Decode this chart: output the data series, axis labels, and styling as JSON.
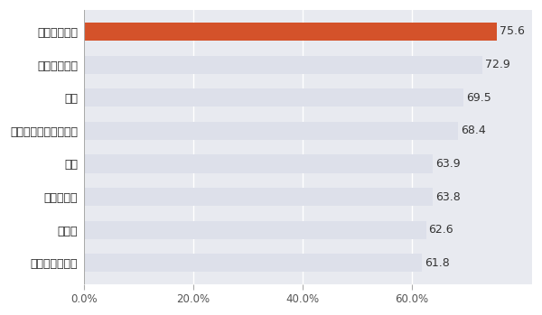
{
  "categories": [
    "人材派遣・紹介",
    "飲食店",
    "運輸・倉庫",
    "金融",
    "メンテナンス・警備等",
    "建設",
    "情報サービス",
    "旅館・ホテル"
  ],
  "values": [
    61.8,
    62.6,
    63.8,
    63.9,
    68.4,
    69.5,
    72.9,
    75.6
  ],
  "bar_colors": [
    "#dde0ea",
    "#dde0ea",
    "#dde0ea",
    "#dde0ea",
    "#dde0ea",
    "#dde0ea",
    "#dde0ea",
    "#d4522a"
  ],
  "value_labels": [
    "61.8",
    "62.6",
    "63.8",
    "63.9",
    "68.4",
    "69.5",
    "72.9",
    "75.6"
  ],
  "xlim": [
    0,
    82
  ],
  "xticks": [
    0,
    20,
    40,
    60
  ],
  "xtick_labels": [
    "0.0%",
    "20.0%",
    "40.0%",
    "60.0%"
  ],
  "bar_height": 0.55,
  "background_color": "#ffffff",
  "label_fontsize": 9,
  "value_fontsize": 9,
  "tick_fontsize": 8.5
}
